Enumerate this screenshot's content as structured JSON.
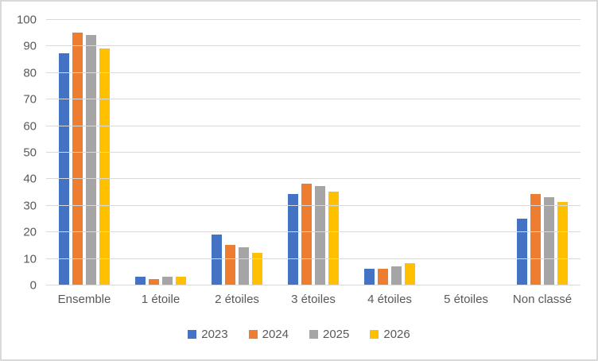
{
  "chart_data": {
    "type": "bar",
    "title": "",
    "categories": [
      "Ensemble",
      "1 étoile",
      "2 étoiles",
      "3 étoiles",
      "4 étoiles",
      "5 étoiles",
      "Non classé"
    ],
    "series": [
      {
        "name": "2023",
        "color": "#4472C4",
        "values": [
          87,
          3,
          19,
          34,
          6,
          0,
          25
        ]
      },
      {
        "name": "2024",
        "color": "#ED7D31",
        "values": [
          95,
          2,
          15,
          38,
          6,
          0,
          34
        ]
      },
      {
        "name": "2025",
        "color": "#A5A5A5",
        "values": [
          94,
          3,
          14,
          37,
          7,
          0,
          33
        ]
      },
      {
        "name": "2026",
        "color": "#FFC000",
        "values": [
          89,
          3,
          12,
          35,
          8,
          0,
          31
        ]
      }
    ],
    "ylim": [
      0,
      100
    ],
    "yticks": [
      0,
      10,
      20,
      30,
      40,
      50,
      60,
      70,
      80,
      90,
      100
    ],
    "xlabel": "",
    "ylabel": "",
    "grid": "horizontal",
    "legend_position": "bottom"
  },
  "colors": {
    "gridline": "#D9D9D9",
    "axis_text": "#595959",
    "frame_border": "#D9D9D9",
    "background": "#FFFFFF"
  }
}
